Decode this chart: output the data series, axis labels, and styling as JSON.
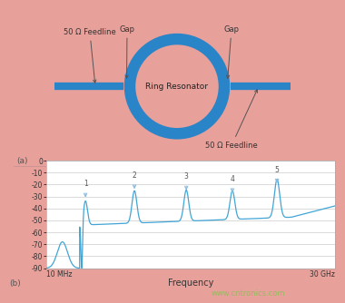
{
  "background_color": "#e8a09a",
  "fig_width": 3.8,
  "fig_height": 3.34,
  "dpi": 100,
  "ring_color": "#2a84c8",
  "ring_linewidth": 9,
  "feedline_color": "#2a84c8",
  "feedline_linewidth": 6,
  "label_a": "(a)",
  "label_b": "(b)",
  "freq_xlabel": "Frequency",
  "x_left_label": "10 MHz",
  "x_right_label": "30 GHz",
  "yticks": [
    0,
    -10,
    -20,
    -30,
    -40,
    -50,
    -60,
    -70,
    -80,
    -90
  ],
  "ylim": [
    -90,
    0
  ],
  "plot_bg": "#ffffff",
  "line_color": "#42a5d5",
  "text_50_feedline_left": "50 Ω Feedline",
  "text_gap_left": "Gap",
  "text_gap_right": "Gap",
  "text_ring_resonator": "Ring Resonator",
  "text_50_feedline_right": "50 Ω Feedline",
  "watermark": "www.cntronics.com",
  "watermark_color": "#8fbd5a"
}
